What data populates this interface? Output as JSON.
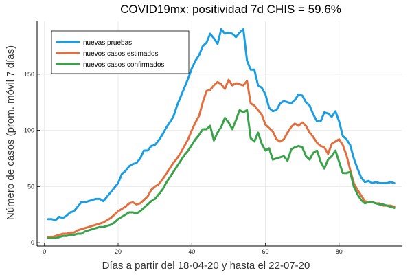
{
  "chart_data": {
    "type": "line",
    "title": "COVID19mx: positividad 7d CHIS = 59.6%",
    "xlabel": "Días a partir del 18-04-20 y hasta el 22-07-20",
    "ylabel": "Número de casos (prom. móvil 7 días)",
    "xlim": [
      -2,
      97
    ],
    "ylim": [
      -3,
      197
    ],
    "xticks": [
      0,
      20,
      40,
      60,
      80
    ],
    "yticks": [
      0,
      50,
      100,
      150
    ],
    "xtick_labels": [
      "0",
      "20",
      "40",
      "60",
      "80"
    ],
    "ytick_labels": [
      "0",
      "50",
      "100",
      "150"
    ],
    "grid": true,
    "legend_position": "top-left",
    "x": [
      1,
      2,
      3,
      4,
      5,
      6,
      7,
      8,
      9,
      10,
      11,
      12,
      13,
      14,
      15,
      16,
      17,
      18,
      19,
      20,
      21,
      22,
      23,
      24,
      25,
      26,
      27,
      28,
      29,
      30,
      31,
      32,
      33,
      34,
      35,
      36,
      37,
      38,
      39,
      40,
      41,
      42,
      43,
      44,
      45,
      46,
      47,
      48,
      49,
      50,
      51,
      52,
      53,
      54,
      55,
      56,
      57,
      58,
      59,
      60,
      61,
      62,
      63,
      64,
      65,
      66,
      67,
      68,
      69,
      70,
      71,
      72,
      73,
      74,
      75,
      76,
      77,
      78,
      79,
      80,
      81,
      82,
      83,
      84,
      85,
      86,
      87,
      88,
      89,
      90,
      91,
      92,
      93,
      94,
      95
    ],
    "series": [
      {
        "name": "nuevas pruebas",
        "color": "#1b9de2",
        "values": [
          21,
          21,
          20,
          23,
          22,
          24,
          27,
          28,
          32,
          36,
          36,
          37,
          38,
          39,
          39,
          37,
          41,
          45,
          49,
          53,
          61,
          64,
          68,
          70,
          71,
          75,
          82,
          82,
          86,
          87,
          91,
          96,
          102,
          107,
          112,
          122,
          130,
          138,
          146,
          155,
          162,
          167,
          175,
          178,
          186,
          182,
          177,
          190,
          186,
          187,
          186,
          183,
          187,
          190,
          162,
          154,
          154,
          140,
          138,
          132,
          120,
          117,
          118,
          124,
          126,
          125,
          124,
          127,
          132,
          131,
          125,
          122,
          114,
          108,
          108,
          116,
          115,
          112,
          117,
          108,
          95,
          92,
          87,
          75,
          66,
          58,
          54,
          55,
          53,
          54,
          53,
          53,
          53,
          54,
          53
        ],
        "endpoint": "nuevas_pruebas_end"
      },
      {
        "name": "nuevos casos estimados",
        "color": "#e26f3f",
        "values": [
          5,
          5,
          6,
          7,
          8,
          8,
          9,
          9,
          11,
          12,
          13,
          14,
          15,
          16,
          17,
          18,
          20,
          22,
          25,
          28,
          30,
          32,
          35,
          36,
          34,
          35,
          38,
          41,
          47,
          50,
          52,
          56,
          61,
          66,
          71,
          75,
          80,
          86,
          92,
          100,
          107,
          113,
          125,
          135,
          136,
          140,
          143,
          141,
          137,
          145,
          140,
          142,
          141,
          140,
          144,
          124,
          122,
          118,
          114,
          105,
          102,
          99,
          92,
          90,
          92,
          98,
          103,
          106,
          104,
          107,
          104,
          98,
          94,
          89,
          86,
          85,
          79,
          88,
          90,
          92,
          87,
          78,
          65,
          53,
          47,
          42,
          37,
          36,
          36,
          35,
          35,
          33,
          33,
          33,
          32
        ],
        "endpoint": "casos_estimados_end"
      },
      {
        "name": "nuevos casos confirmados",
        "color": "#3aa24a",
        "values": [
          4,
          4,
          4,
          5,
          6,
          6,
          7,
          7,
          8,
          8,
          10,
          11,
          12,
          13,
          14,
          14,
          15,
          16,
          18,
          21,
          23,
          25,
          27,
          27,
          26,
          28,
          31,
          34,
          37,
          39,
          43,
          47,
          53,
          58,
          63,
          68,
          73,
          78,
          82,
          87,
          92,
          96,
          101,
          101,
          104,
          91,
          98,
          103,
          111,
          107,
          101,
          109,
          118,
          116,
          118,
          93,
          90,
          98,
          88,
          82,
          84,
          74,
          75,
          76,
          77,
          73,
          83,
          85,
          86,
          85,
          77,
          74,
          80,
          82,
          72,
          66,
          74,
          77,
          82,
          72,
          62,
          62,
          63,
          50,
          43,
          38,
          35,
          36,
          36,
          35,
          34,
          34,
          33,
          32,
          31
        ],
        "endpoint": "casos_confirmados_end"
      }
    ]
  }
}
